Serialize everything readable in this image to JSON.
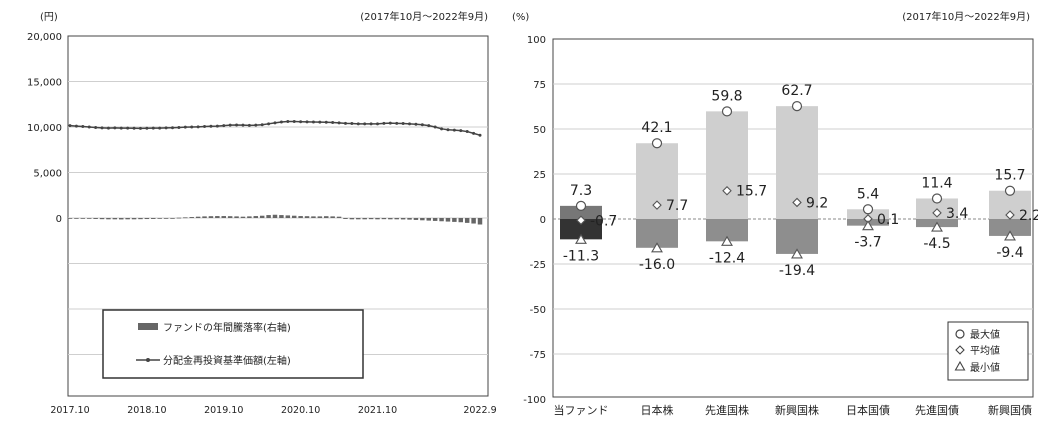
{
  "chart_data": [
    {
      "type": "line",
      "unit_left": "(円)",
      "period": "(2017年10月～2022年9月)",
      "y_ticks": [
        "20,000",
        "15,000",
        "10,000",
        "5,000",
        "0"
      ],
      "x_ticks": [
        "2017.10",
        "2018.10",
        "2019.10",
        "2020.10",
        "2021.10",
        "2022.9"
      ],
      "ylim": [
        0,
        20000
      ],
      "series": [
        {
          "name": "分配金再投資基準価額(左軸)",
          "values": [
            10150,
            10100,
            10050,
            10000,
            9950,
            9900,
            9880,
            9900,
            9880,
            9870,
            9860,
            9850,
            9860,
            9870,
            9880,
            9900,
            9920,
            9950,
            9980,
            10000,
            10020,
            10050,
            10080,
            10100,
            10150,
            10200,
            10220,
            10200,
            10180,
            10200,
            10250,
            10350,
            10450,
            10550,
            10600,
            10600,
            10580,
            10560,
            10550,
            10540,
            10520,
            10500,
            10450,
            10400,
            10380,
            10350,
            10350,
            10350,
            10350,
            10400,
            10420,
            10400,
            10380,
            10350,
            10300,
            10250,
            10150,
            10000,
            9800,
            9700,
            9650,
            9600,
            9500,
            9300,
            9100
          ]
        },
        {
          "name": "ファンドの年間騰落率(右軸)",
          "values": [
            -0.8,
            -0.8,
            -1.0,
            -1.2,
            -1.5,
            -1.8,
            -2.0,
            -2.0,
            -2.2,
            -2.0,
            -2.0,
            -1.8,
            -1.6,
            -1.5,
            -1.2,
            -1.0,
            -0.5,
            0.5,
            1.0,
            1.5,
            2.0,
            2.5,
            2.8,
            3.0,
            3.0,
            2.8,
            2.5,
            2.0,
            2.5,
            3.0,
            3.5,
            4.5,
            5.0,
            4.5,
            4.0,
            3.5,
            3.0,
            2.8,
            2.5,
            2.5,
            2.8,
            2.5,
            2.0,
            -1.5,
            -2.0,
            -2.0,
            -2.0,
            -1.8,
            -2.0,
            -1.8,
            -2.0,
            -2.0,
            -2.2,
            -2.5,
            -3.0,
            -3.5,
            -4.0,
            -4.5,
            -5.0,
            -5.5,
            -6.0,
            -6.5,
            -7.5,
            -8.5,
            -10.0
          ]
        }
      ]
    },
    {
      "type": "bar",
      "unit": "(%)",
      "period": "(2017年10月～2022年9月)",
      "categories": [
        "当ファンド",
        "日本株",
        "先進国株",
        "新興国株",
        "日本国債",
        "先進国債",
        "新興国債"
      ],
      "ylim": [
        -100,
        100
      ],
      "y_ticks": [
        "100",
        "75",
        "50",
        "25",
        "0",
        "-25",
        "-50",
        "-75",
        "-100"
      ],
      "max": [
        7.3,
        42.1,
        59.8,
        62.7,
        5.4,
        11.4,
        15.7
      ],
      "avg": [
        -0.7,
        7.7,
        15.7,
        9.2,
        0.1,
        3.4,
        2.2
      ],
      "min": [
        -11.3,
        -16.0,
        -12.4,
        -19.4,
        -3.7,
        -4.5,
        -9.4
      ],
      "max_labels": [
        "7.3",
        "42.1",
        "59.8",
        "62.7",
        "5.4",
        "11.4",
        "15.7"
      ],
      "avg_labels": [
        "-0.7",
        "7.7",
        "15.7",
        "9.2",
        "0.1",
        "3.4",
        "2.2"
      ],
      "min_labels": [
        "-11.3",
        "-16.0",
        "-12.4",
        "-19.4",
        "-3.7",
        "-4.5",
        "-9.4"
      ],
      "legend": {
        "max": "最大値",
        "avg": "平均値",
        "min": "最小値"
      }
    }
  ]
}
